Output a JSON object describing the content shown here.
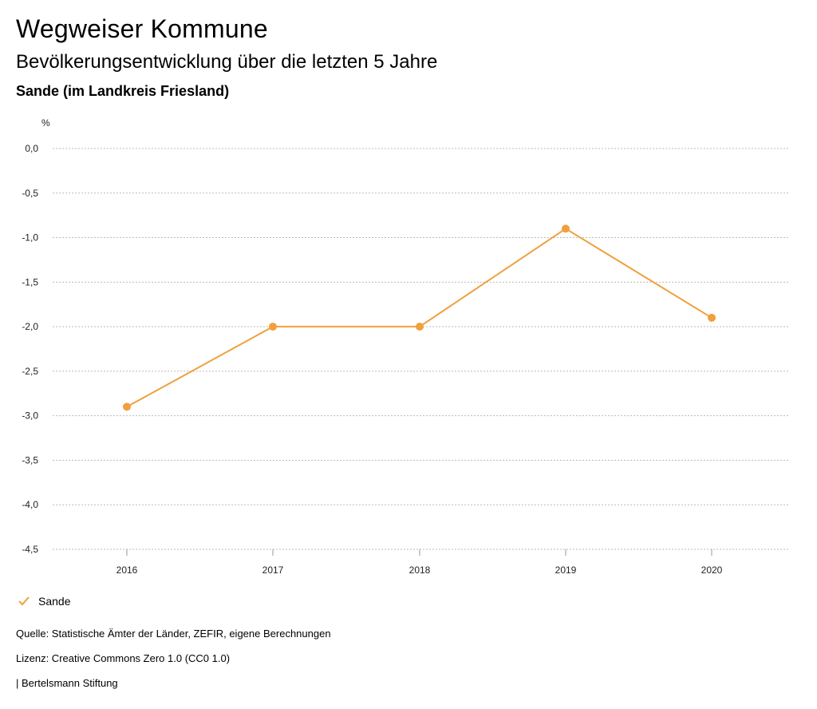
{
  "header": {
    "title": "Wegweiser Kommune",
    "subtitle": "Bevölkerungsentwicklung über die letzten 5 Jahre",
    "region": "Sande (im Landkreis Friesland)"
  },
  "chart_data": {
    "type": "line",
    "ylabel": "%",
    "xlabel": "",
    "categories": [
      "2016",
      "2017",
      "2018",
      "2019",
      "2020"
    ],
    "series": [
      {
        "name": "Sande",
        "values": [
          -2.9,
          -2.0,
          -2.0,
          -0.9,
          -1.9
        ],
        "color": "#f0a03c"
      }
    ],
    "ylim": [
      -4.5,
      0.0
    ],
    "yticks": [
      "0,0",
      "-0,5",
      "-1,0",
      "-1,5",
      "-2,0",
      "-2,5",
      "-3,0",
      "-3,5",
      "-4,0",
      "-4,5"
    ],
    "grid": true,
    "legend_position": "bottom-left"
  },
  "legend": {
    "label": "Sande"
  },
  "footer": {
    "source": "Quelle: Statistische Ämter der Länder, ZEFIR, eigene Berechnungen",
    "license": "Lizenz: Creative Commons Zero 1.0 (CC0 1.0)",
    "publisher": "| Bertelsmann Stiftung"
  }
}
